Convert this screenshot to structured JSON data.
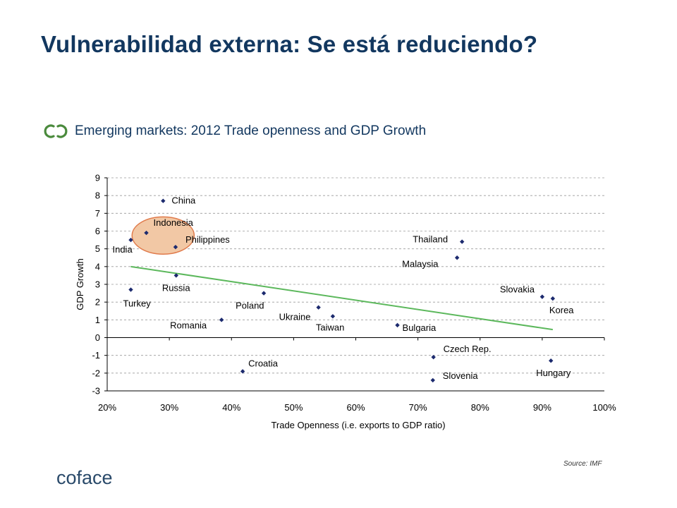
{
  "title": "Vulnerabilidad externa: Se está reduciendo?",
  "bullet": {
    "text": "Emerging markets: 2012 Trade openness and GDP Growth",
    "icon": "double-ring-icon"
  },
  "source": "Source: IMF",
  "logo": {
    "text": "coface",
    "icon": "coface-logo-icon"
  },
  "colors": {
    "title": "#12375f",
    "marker": "#1c2a6e",
    "trend": "#5cb85c",
    "highlight_fill": "#f2c8a5",
    "highlight_stroke": "#e07b4c",
    "bullet_icon": "#4a8a3c"
  },
  "chart_data": {
    "type": "scatter",
    "title": "",
    "xlabel": "Trade Openness (i.e. exports to GDP ratio)",
    "ylabel": "GDP Growth",
    "xlim": [
      0.2,
      1.0
    ],
    "ylim": [
      -3,
      9
    ],
    "x_ticks": [
      "20%",
      "30%",
      "40%",
      "50%",
      "60%",
      "70%",
      "80%",
      "90%",
      "100%"
    ],
    "y_ticks": [
      "9",
      "8",
      "7",
      "6",
      "5",
      "4",
      "3",
      "2",
      "1",
      "0",
      "-1",
      "-2",
      "-3"
    ],
    "grid": "horizontal-dashed",
    "points": [
      {
        "label": "China",
        "x": 0.29,
        "y": 7.7
      },
      {
        "label": "Indonesia",
        "x": 0.263,
        "y": 5.9
      },
      {
        "label": "India",
        "x": 0.238,
        "y": 5.5
      },
      {
        "label": "Philippines",
        "x": 0.31,
        "y": 5.1
      },
      {
        "label": "Russia",
        "x": 0.311,
        "y": 3.5
      },
      {
        "label": "Turkey",
        "x": 0.238,
        "y": 2.7
      },
      {
        "label": "Poland",
        "x": 0.452,
        "y": 2.5
      },
      {
        "label": "Romania",
        "x": 0.384,
        "y": 1.0
      },
      {
        "label": "Ukraine",
        "x": 0.54,
        "y": 1.7
      },
      {
        "label": "Taiwan",
        "x": 0.563,
        "y": 1.2
      },
      {
        "label": "Bulgaria",
        "x": 0.667,
        "y": 0.7
      },
      {
        "label": "Thailand",
        "x": 0.771,
        "y": 5.4
      },
      {
        "label": "Malaysia",
        "x": 0.763,
        "y": 4.5
      },
      {
        "label": "Slovakia",
        "x": 0.9,
        "y": 2.3
      },
      {
        "label": "Korea",
        "x": 0.917,
        "y": 2.2
      },
      {
        "label": "Croatia",
        "x": 0.418,
        "y": -1.9
      },
      {
        "label": "Czech Rep.",
        "x": 0.725,
        "y": -1.1
      },
      {
        "label": "Slovenia",
        "x": 0.724,
        "y": -2.4
      },
      {
        "label": "Hungary",
        "x": 0.914,
        "y": -1.3
      }
    ],
    "trendline": {
      "x": [
        0.238,
        0.917
      ],
      "y": [
        4.0,
        0.45
      ]
    },
    "highlight": {
      "center": {
        "x": 0.29,
        "y": 5.75
      },
      "rx": 0.05,
      "ry": 1.05
    }
  }
}
